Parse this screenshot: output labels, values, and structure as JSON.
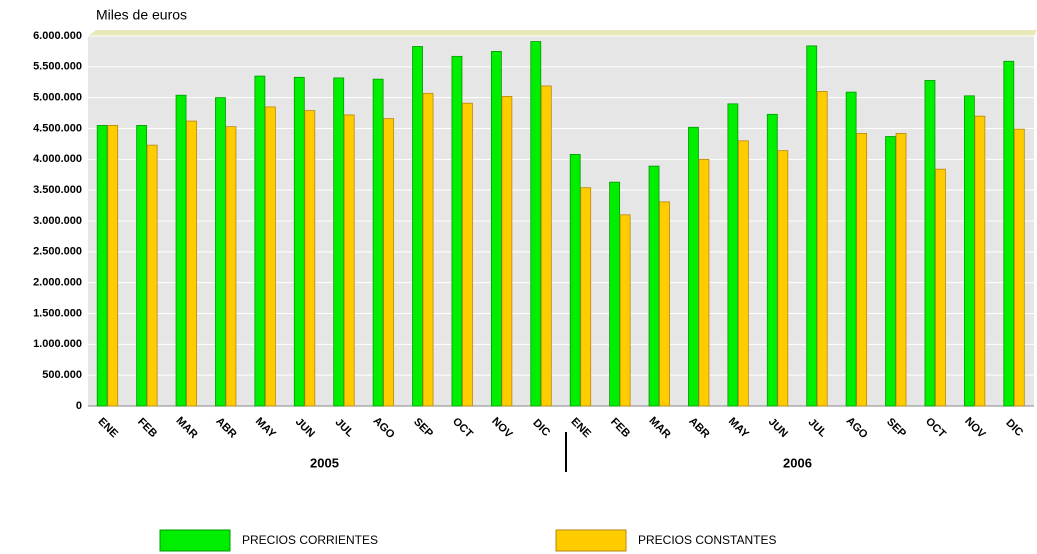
{
  "chart_data": {
    "type": "bar",
    "y_axis_title": "Miles de euros",
    "categories": [
      "ENE",
      "FEB",
      "MAR",
      "ABR",
      "MAY",
      "JUN",
      "JUL",
      "AGO",
      "SEP",
      "OCT",
      "NOV",
      "DIC",
      "ENE",
      "FEB",
      "MAR",
      "ABR",
      "MAY",
      "JUN",
      "JUL",
      "AGO",
      "SEP",
      "OCT",
      "NOV",
      "DIC"
    ],
    "year_labels": [
      "2005",
      "2006"
    ],
    "series": [
      {
        "name": "PRECIOS CORRIENTES",
        "color": "#00ee00",
        "values": [
          4550000,
          4550000,
          5040000,
          5000000,
          5350000,
          5330000,
          5320000,
          5300000,
          5830000,
          5670000,
          5750000,
          5910000,
          4080000,
          3630000,
          3890000,
          4520000,
          4900000,
          4730000,
          5840000,
          5090000,
          4370000,
          5280000,
          5030000,
          5590000
        ]
      },
      {
        "name": "PRECIOS CONSTANTES",
        "color": "#ffcc00",
        "values": [
          4550000,
          4230000,
          4620000,
          4530000,
          4850000,
          4790000,
          4720000,
          4660000,
          5070000,
          4910000,
          5020000,
          5190000,
          3540000,
          3100000,
          3310000,
          4000000,
          4300000,
          4140000,
          5100000,
          4420000,
          4420000,
          3840000,
          4700000,
          4490000
        ]
      }
    ],
    "ylim": [
      0,
      6000000
    ],
    "yticks": [
      0,
      {
        "value": 500000,
        "label": "500.000"
      },
      {
        "value": 1000000,
        "label": "1.000.000"
      },
      {
        "value": 1500000,
        "label": "1.500.000"
      },
      {
        "value": 2000000,
        "label": "2.000.000"
      },
      {
        "value": 2500000,
        "label": "2.500.000"
      },
      {
        "value": 3000000,
        "label": "3.000.000"
      },
      {
        "value": 3500000,
        "label": "3.500.000"
      },
      {
        "value": 4000000,
        "label": "4.000.000"
      },
      {
        "value": 4500000,
        "label": "4.500.000"
      },
      {
        "value": 5000000,
        "label": "5.000.000"
      },
      {
        "value": 5500000,
        "label": "5.500.000"
      },
      {
        "value": 6000000,
        "label": "6.000.000"
      }
    ],
    "grid": true
  }
}
